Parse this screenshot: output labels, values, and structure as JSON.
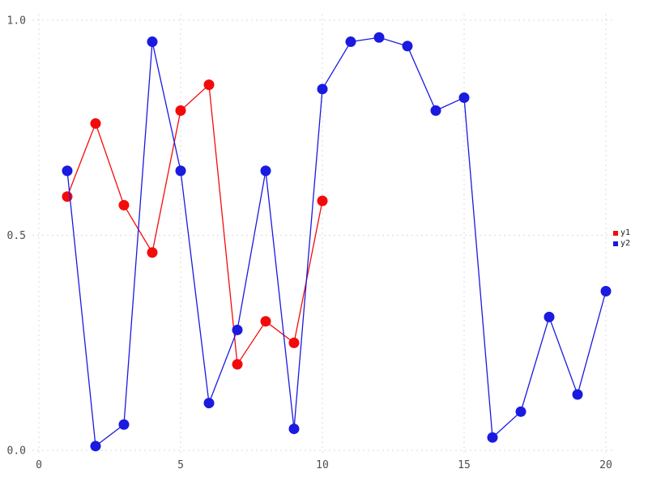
{
  "chart_data": {
    "type": "line",
    "title": "",
    "xlabel": "",
    "ylabel": "",
    "grid": true,
    "legend_position": "right-center",
    "marker": "circle",
    "x_axis": {
      "ticks": [
        0,
        5,
        10,
        15,
        20
      ],
      "tick_labels": [
        "0",
        "5",
        "10",
        "15",
        "20"
      ],
      "range": [
        0,
        20.5
      ]
    },
    "y_axis": {
      "ticks": [
        0.0,
        0.5,
        1.0
      ],
      "tick_labels": [
        "0.0",
        "0.5",
        "1.0"
      ],
      "range": [
        0.0,
        1.0
      ]
    },
    "series": [
      {
        "name": "y1",
        "color": "#f40a0a",
        "x": [
          1,
          2,
          3,
          4,
          5,
          6,
          7,
          8,
          9,
          10
        ],
        "values": [
          0.59,
          0.76,
          0.57,
          0.46,
          0.79,
          0.85,
          0.2,
          0.3,
          0.25,
          0.58
        ]
      },
      {
        "name": "y2",
        "color": "#1a1ae0",
        "x": [
          1,
          2,
          3,
          4,
          5,
          6,
          7,
          8,
          9,
          10,
          11,
          12,
          13,
          14,
          15,
          16,
          17,
          18,
          19,
          20
        ],
        "values": [
          0.65,
          0.01,
          0.06,
          0.95,
          0.65,
          0.11,
          0.28,
          0.65,
          0.05,
          0.84,
          0.95,
          0.96,
          0.94,
          0.79,
          0.82,
          0.03,
          0.09,
          0.31,
          0.13,
          0.37
        ]
      }
    ],
    "colors": {
      "background": "#ffffff",
      "grid": "#d9d9e8",
      "tick_label": "#4d4d4d",
      "legend_text": "#1a1a1a"
    }
  }
}
